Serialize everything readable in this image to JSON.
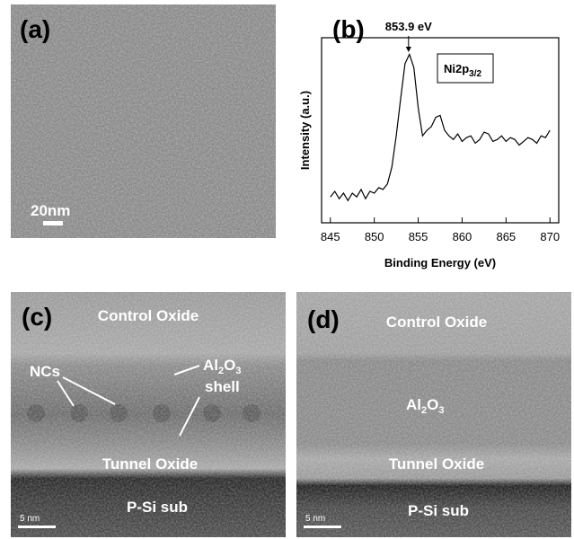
{
  "panels": {
    "a": {
      "label": "(a)",
      "scale_bar": "20nm"
    },
    "c": {
      "label": "(c)",
      "control_oxide": "Control Oxide",
      "ncs": "NCs",
      "shell_formula": [
        "Al",
        "2",
        "O",
        "3"
      ],
      "shell": "shell",
      "tunnel_oxide": "Tunnel Oxide",
      "substrate": "P-Si sub",
      "scale_bar": "5 nm"
    },
    "d": {
      "label": "(d)",
      "control_oxide": "Control Oxide",
      "layer_formula": [
        "Al",
        "2",
        "O",
        "3"
      ],
      "tunnel_oxide": "Tunnel Oxide",
      "substrate": "P-Si sub",
      "scale_bar": "5 nm"
    }
  },
  "chart_data": {
    "type": "line",
    "panel_label": "(b)",
    "x_label": "Binding Energy (eV)",
    "y_label": "Intensity (a.u.)",
    "peak_annotation": "853.9 eV",
    "peak_x": 853.9,
    "legend_parts": [
      "Ni2p",
      "3/2"
    ],
    "x": [
      845,
      845.5,
      846,
      846.5,
      847,
      847.5,
      848,
      848.5,
      849,
      849.5,
      850,
      850.5,
      851,
      851.5,
      852,
      852.5,
      853,
      853.5,
      854,
      854.5,
      855,
      855.5,
      856,
      856.5,
      857,
      857.5,
      858,
      858.5,
      859,
      859.5,
      860,
      860.5,
      861,
      861.5,
      862,
      862.5,
      863,
      863.5,
      864,
      864.5,
      865,
      865.5,
      866,
      866.5,
      867,
      867.5,
      868,
      868.5,
      869,
      869.5,
      870
    ],
    "values": [
      14,
      17,
      13,
      16,
      12,
      16,
      14,
      18,
      13,
      17,
      16,
      19,
      18,
      21,
      30,
      47,
      67,
      86,
      91,
      84,
      62,
      47,
      50,
      52,
      57,
      58,
      50,
      47,
      45,
      48,
      44,
      46,
      47,
      43,
      45,
      49,
      48,
      44,
      45,
      47,
      44,
      46,
      45,
      42,
      44,
      46,
      45,
      43,
      47,
      46,
      50
    ],
    "color": "#000000",
    "xlim": [
      844,
      871
    ],
    "xticks": [
      845,
      850,
      855,
      860,
      865,
      870
    ],
    "ylim": [
      0,
      100
    ]
  }
}
